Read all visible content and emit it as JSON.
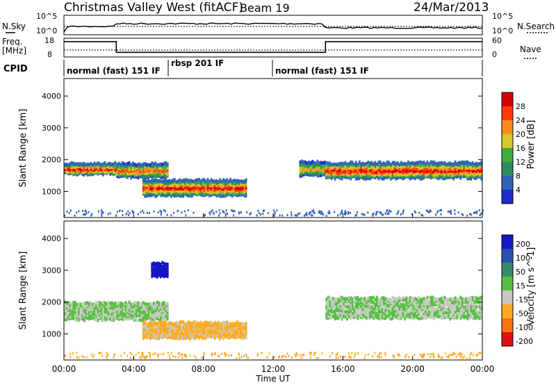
{
  "header": {
    "title": "Christmas Valley West (fitACF)",
    "beam": "Beam 19",
    "date": "24/Mar/2013"
  },
  "noise_panel": {
    "left_label": "N.Sky",
    "right_label": "N.Search",
    "tick_top": "10^5",
    "tick_bottom": "10^0",
    "right_tick_top": "10^5",
    "right_tick_bottom": "10^0"
  },
  "freq_panel": {
    "left_label_1": "Freq.",
    "left_label_2": "[MHz]",
    "right_label": "Nave",
    "left_ticks": [
      "18",
      "8"
    ],
    "right_ticks": [
      "60",
      "0"
    ],
    "freq_steps": [
      {
        "start_hour": 0.0,
        "end_hour": 3.0,
        "level": 0.82
      },
      {
        "start_hour": 3.0,
        "end_hour": 15.0,
        "level": 0.25
      },
      {
        "start_hour": 15.0,
        "end_hour": 24.0,
        "level": 0.82
      }
    ]
  },
  "cpid": {
    "label": "CPID",
    "segments": [
      {
        "name": "normal (fast) 151 IF",
        "start_hour": 0.0,
        "end_hour": 6.0
      },
      {
        "name": "rbsp 201 IF",
        "start_hour": 6.0,
        "end_hour": 12.0
      },
      {
        "name": "normal (fast) 151 IF",
        "start_hour": 12.0,
        "end_hour": 24.0
      }
    ]
  },
  "chart_data": [
    {
      "type": "heatmap",
      "panel": "power",
      "ylabel": "Slant Range [km]",
      "ylim": [
        180,
        4550
      ],
      "yticks": [
        "1000",
        "2000",
        "3000",
        "4000"
      ],
      "colorbar_label": "Power [dB]",
      "colorbar_ticks": [
        "4",
        "8",
        "12",
        "16",
        "20",
        "24",
        "28"
      ],
      "colors": [
        "#1e2bd1",
        "#2f63b8",
        "#2e8b5e",
        "#3fae3f",
        "#d4c82a",
        "#ff8a1a",
        "#ff3a10",
        "#d80000"
      ],
      "echo_bands": [
        {
          "start_hour": 0.0,
          "end_hour": 3.0,
          "range_km": 1700,
          "width_km": 300,
          "peak_db": 30
        },
        {
          "start_hour": 3.0,
          "end_hour": 6.0,
          "range_km": 1650,
          "width_km": 400,
          "peak_db": 26
        },
        {
          "start_hour": 4.5,
          "end_hour": 10.5,
          "range_km": 1100,
          "width_km": 450,
          "peak_db": 30
        },
        {
          "start_hour": 13.5,
          "end_hour": 15.0,
          "range_km": 1700,
          "width_km": 400,
          "peak_db": 22
        },
        {
          "start_hour": 15.0,
          "end_hour": 24.0,
          "range_km": 1650,
          "width_km": 450,
          "peak_db": 30
        }
      ]
    },
    {
      "type": "heatmap",
      "panel": "velocity",
      "xlabel": "Time UT",
      "ylabel": "Slant Range [km]",
      "ylim": [
        180,
        4550
      ],
      "yticks": [
        "1000",
        "2000",
        "3000",
        "4000"
      ],
      "xticks": [
        "00:00",
        "04:00",
        "08:00",
        "12:00",
        "16:00",
        "20:00",
        "00:00"
      ],
      "colorbar_label": "Velocity [m s^-1]",
      "colorbar_ticks": [
        "200",
        "100",
        "50",
        "15",
        "-15",
        "-50",
        "-100",
        "-200"
      ],
      "colors": [
        "#1616c8",
        "#2a4fb0",
        "#3a8a6a",
        "#55c040",
        "#c8c8c0",
        "#ffaa20",
        "#ff7010",
        "#e01010"
      ],
      "echo_bands": [
        {
          "start_hour": 0.0,
          "end_hour": 6.0,
          "range_km": 1700,
          "width_km": 500,
          "velocity": 0
        },
        {
          "start_hour": 4.5,
          "end_hour": 10.5,
          "range_km": 1100,
          "width_km": 450,
          "velocity": -40
        },
        {
          "start_hour": 5.0,
          "end_hour": 6.0,
          "range_km": 3000,
          "width_km": 400,
          "velocity": 180
        },
        {
          "start_hour": 15.0,
          "end_hour": 24.0,
          "range_km": 1800,
          "width_km": 600,
          "velocity": 0
        }
      ]
    }
  ]
}
